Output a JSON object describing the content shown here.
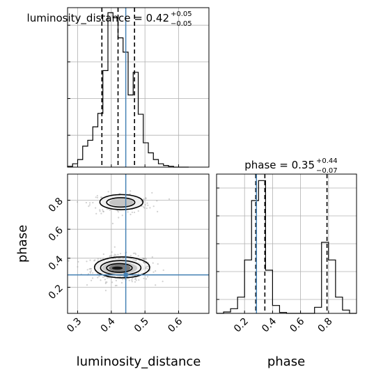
{
  "chart_data": {
    "type": "corner",
    "parameters": [
      "luminosity_distance",
      "phase"
    ],
    "truths": {
      "luminosity_distance": 0.443,
      "phase": 0.285
    },
    "panels": [
      {
        "id": "luminosity_distance-hist",
        "type": "histogram",
        "title": {
          "label": "luminosity_distance = 0.42",
          "sup": "+0.05",
          "sub": "−0.05"
        },
        "xlim": [
          0.27,
          0.69
        ],
        "xticks": [
          0.3,
          0.4,
          0.5,
          0.6
        ],
        "quantiles": [
          0.372,
          0.42,
          0.469
        ],
        "truth": 0.443,
        "bin_edges": [
          0.27,
          0.285,
          0.3,
          0.315,
          0.33,
          0.345,
          0.36,
          0.375,
          0.39,
          0.405,
          0.42,
          0.435,
          0.45,
          0.465,
          0.48,
          0.495,
          0.51,
          0.525,
          0.54,
          0.555,
          0.57,
          0.585,
          0.6,
          0.615,
          0.63
        ],
        "counts": [
          1,
          4,
          9,
          25,
          32,
          48,
          64,
          115,
          184,
          178,
          154,
          137,
          86,
          113,
          63,
          29,
          17,
          9,
          4,
          2,
          1,
          0,
          0,
          0
        ],
        "ylim": [
          0,
          190
        ]
      },
      {
        "id": "phase-hist",
        "type": "histogram",
        "title": {
          "label": "phase = 0.35",
          "sup": "+0.44",
          "sub": "−0.07"
        },
        "xlim": [
          0.0,
          1.0
        ],
        "xticks": [
          0.2,
          0.4,
          0.6,
          0.8
        ],
        "quantiles": [
          0.28,
          0.345,
          0.789
        ],
        "truth": 0.285,
        "bin_edges": [
          0.0,
          0.05,
          0.1,
          0.15,
          0.2,
          0.25,
          0.3,
          0.35,
          0.4,
          0.45,
          0.5,
          0.55,
          0.6,
          0.65,
          0.7,
          0.75,
          0.8,
          0.85,
          0.9,
          0.95,
          1.0
        ],
        "counts": [
          0,
          3,
          10,
          35,
          115,
          243,
          286,
          93,
          17,
          2,
          0,
          0,
          0,
          0,
          13,
          153,
          115,
          35,
          7,
          0
        ],
        "ylim": [
          0,
          300
        ]
      },
      {
        "id": "luminosity_distance-phase-2d",
        "type": "contour",
        "x": "luminosity_distance",
        "y": "phase",
        "xlim": [
          0.27,
          0.69
        ],
        "ylim": [
          0.02,
          0.98
        ],
        "xticks": [
          0.3,
          0.4,
          0.5,
          0.6
        ],
        "yticks": [
          0.2,
          0.4,
          0.6,
          0.8
        ],
        "xlabel": "luminosity_distance",
        "ylabel": "phase",
        "truth": [
          0.443,
          0.285
        ],
        "modes": [
          {
            "center": [
              0.43,
              0.33
            ],
            "spread": [
              0.045,
              0.045
            ],
            "weight": 0.7
          },
          {
            "center": [
              0.43,
              0.78
            ],
            "spread": [
              0.045,
              0.035
            ],
            "weight": 0.3
          }
        ]
      }
    ],
    "colors": {
      "truth": "#4682b4",
      "lines": "#000000",
      "grid": "#b0b0b0",
      "scatter": "#9a9a9a"
    }
  }
}
